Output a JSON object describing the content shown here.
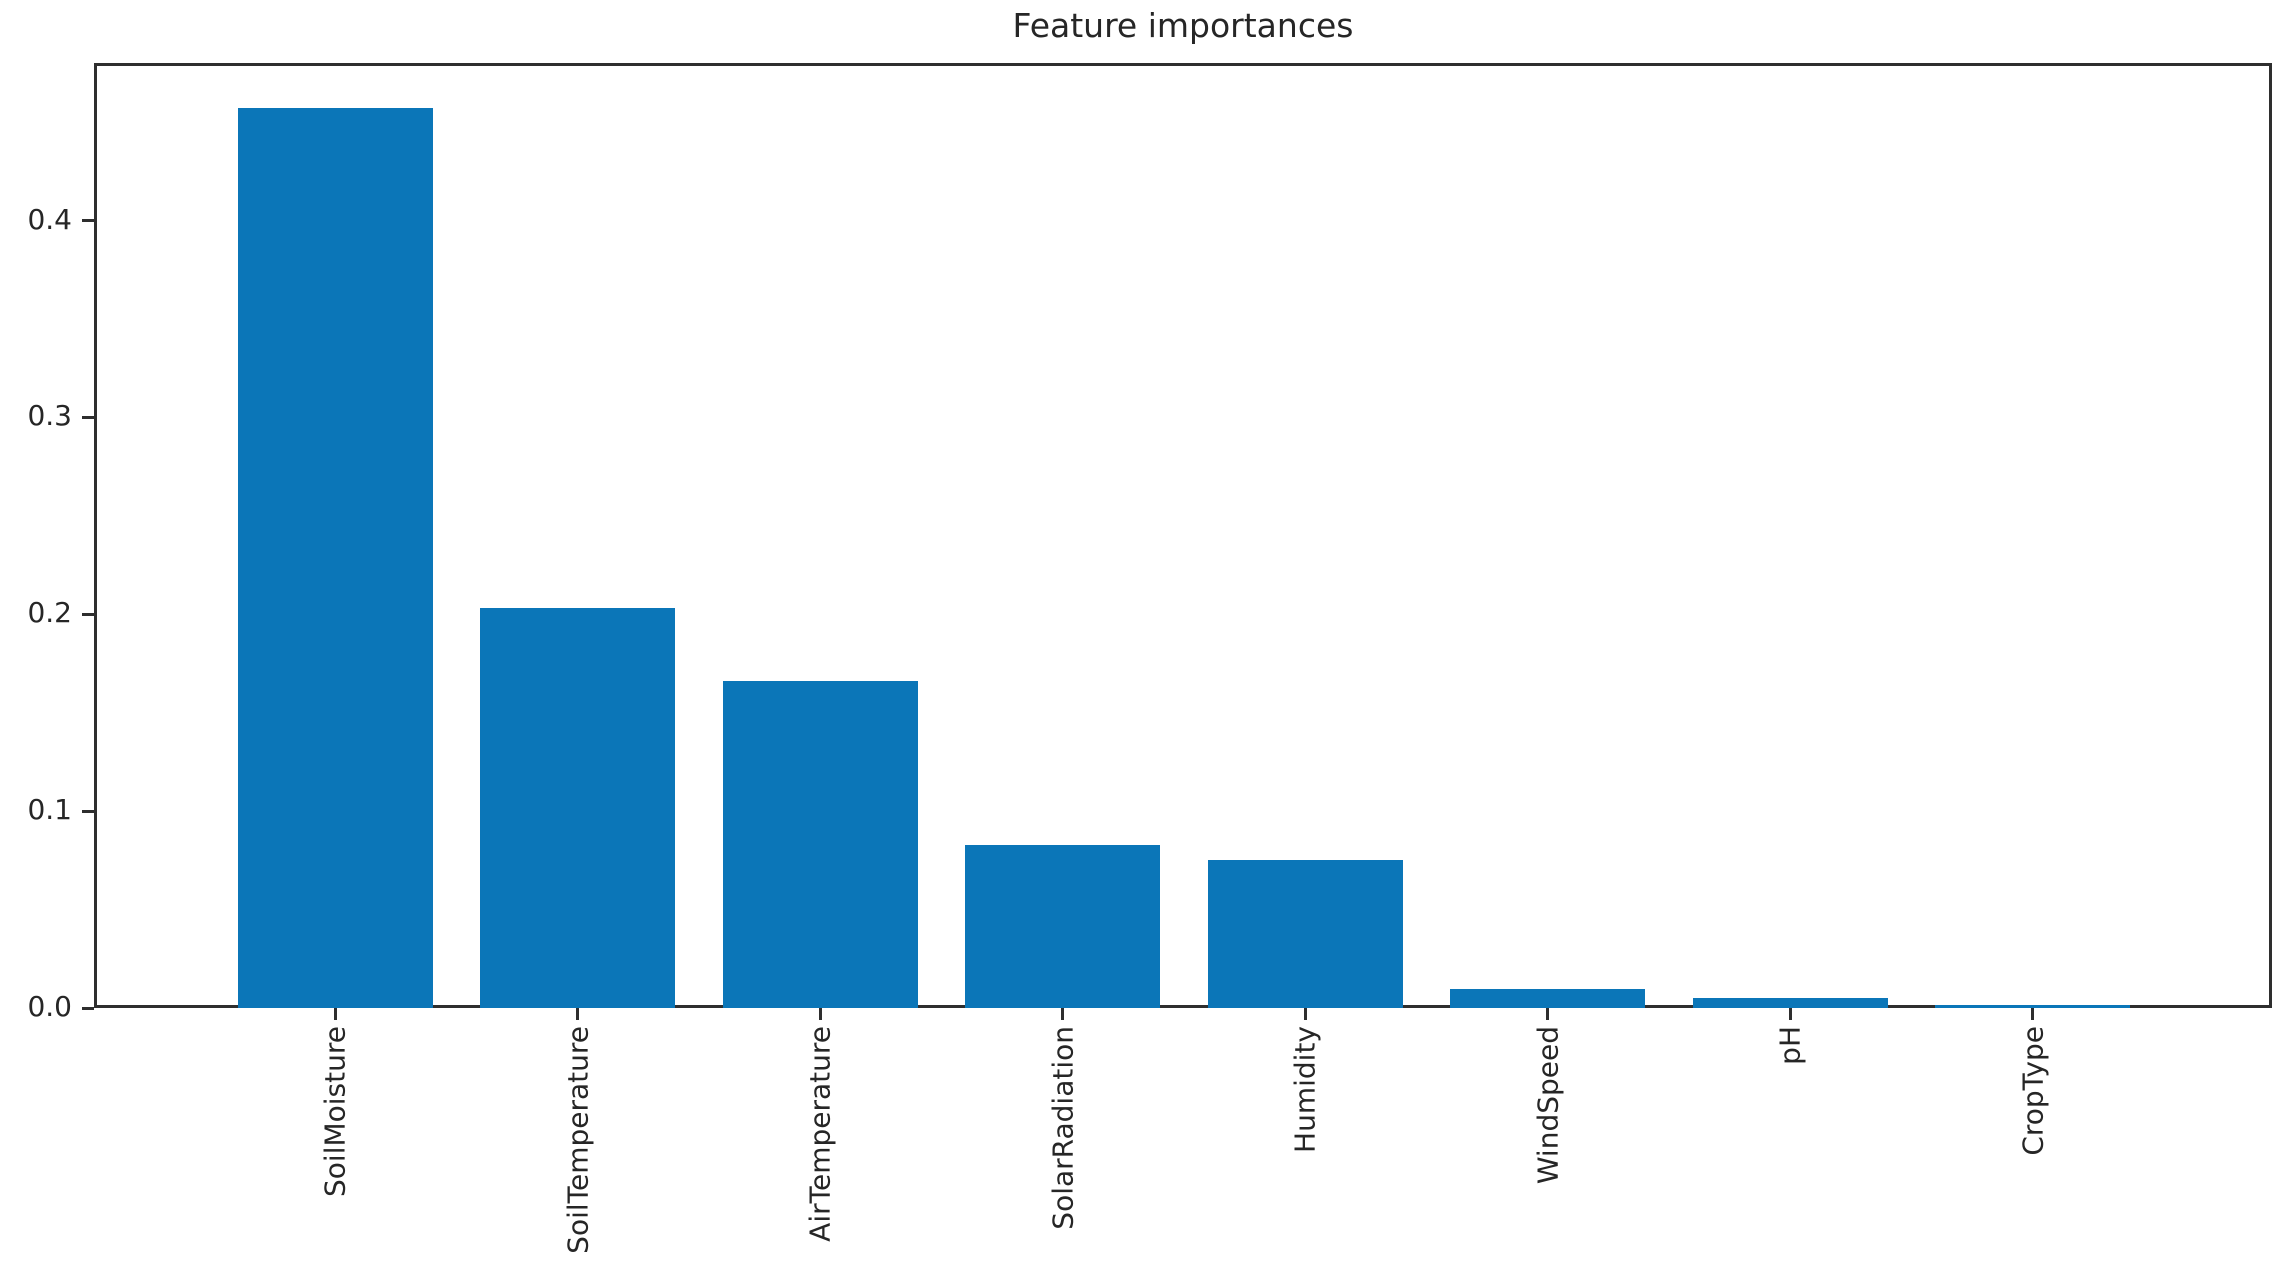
{
  "chart_data": {
    "type": "bar",
    "title": "Feature importances",
    "categories": [
      "SoilMoisture",
      "SoilTemperature",
      "AirTemperature",
      "SolarRadiation",
      "Humidity",
      "WindSpeed",
      "pH",
      "CropType"
    ],
    "values": [
      0.457,
      0.203,
      0.166,
      0.083,
      0.075,
      0.0095,
      0.005,
      0.0015
    ],
    "xlabel": "",
    "ylabel": "",
    "ylim": [
      0,
      0.48
    ],
    "yticks": [
      0.0,
      0.1,
      0.2,
      0.3,
      0.4
    ],
    "ytick_labels": [
      "0.0",
      "0.1",
      "0.2",
      "0.3",
      "0.4"
    ],
    "x_tick_rotation": 90,
    "grid": false,
    "legend": false,
    "bar_color": "#0b76b8",
    "axis_color": "#2e2e2e",
    "text_color": "#262626"
  }
}
